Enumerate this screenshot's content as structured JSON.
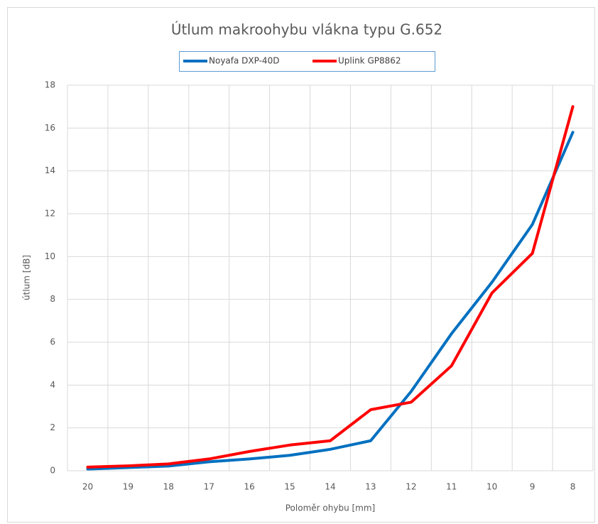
{
  "chart_data": {
    "type": "line",
    "title": "Útlum makroohybu vlákna typu G.652",
    "x_label": "Poloměr ohybu [mm]",
    "y_label": "útlum [dB]",
    "categories": [
      "20",
      "19",
      "18",
      "17",
      "16",
      "15",
      "14",
      "13",
      "12",
      "11",
      "10",
      "9",
      "8"
    ],
    "series": [
      {
        "name": "Noyafa DXP-40D",
        "color": "#0070c0",
        "values": [
          0.08,
          0.15,
          0.22,
          0.42,
          0.55,
          0.72,
          1.0,
          1.4,
          3.7,
          6.4,
          8.8,
          11.5,
          15.8
        ]
      },
      {
        "name": "Uplink GP8862",
        "color": "#ff0000",
        "values": [
          0.17,
          0.23,
          0.32,
          0.55,
          0.9,
          1.2,
          1.4,
          2.85,
          3.2,
          4.9,
          8.3,
          10.15,
          17.0
        ]
      }
    ],
    "ylim": [
      0,
      18
    ],
    "yticks": [
      0,
      2,
      4,
      6,
      8,
      10,
      12,
      14,
      16,
      18
    ],
    "grid": true,
    "legend": "top"
  }
}
